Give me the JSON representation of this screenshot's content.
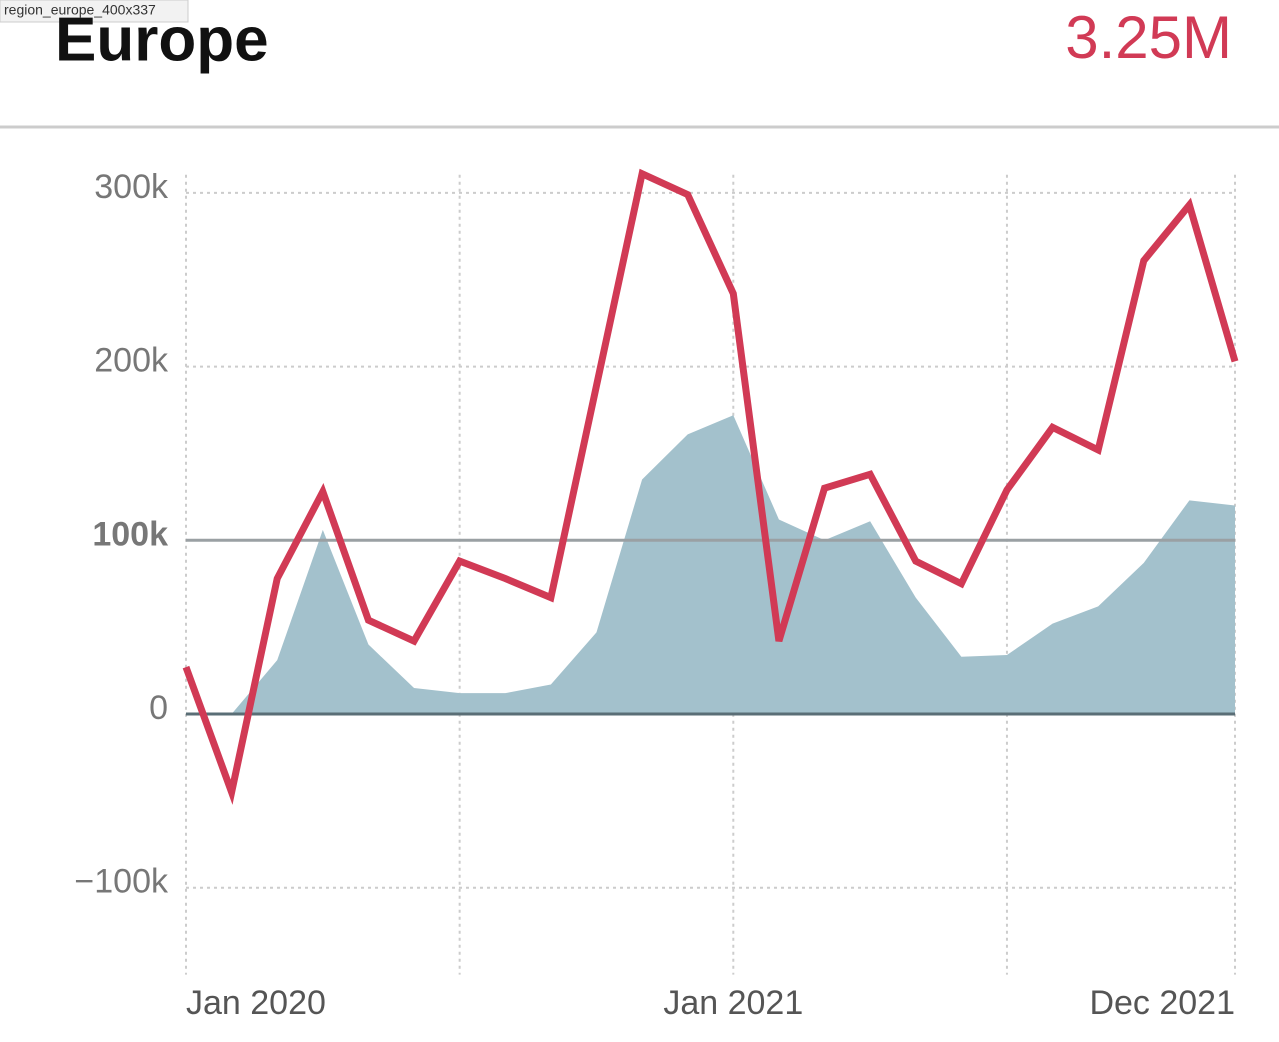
{
  "window_label": "region_europe_400x337",
  "chart_data": {
    "type": "line",
    "title": "Europe",
    "headline_value": "3.25M",
    "categories": [
      "Jan 2020",
      null,
      null,
      null,
      null,
      null,
      null,
      null,
      null,
      null,
      null,
      null,
      "Jan 2021",
      null,
      null,
      null,
      null,
      null,
      null,
      null,
      null,
      null,
      null,
      "Dec 2021"
    ],
    "series": [
      {
        "kind": "area",
        "color": "#a3c1cc",
        "values": [
          null,
          0,
          31000,
          106000,
          40000,
          15000,
          12000,
          12000,
          17000,
          47000,
          135000,
          161000,
          172000,
          112000,
          100000,
          111000,
          67000,
          33000,
          34000,
          52000,
          62000,
          87000,
          123000,
          120000
        ]
      },
      {
        "kind": "line",
        "color": "#d13a55",
        "values": [
          27000,
          -45000,
          78000,
          128000,
          54000,
          42000,
          88000,
          78000,
          67000,
          189000,
          311000,
          299000,
          242000,
          42000,
          130000,
          138000,
          88000,
          75000,
          129000,
          165000,
          152000,
          261000,
          293000,
          203000
        ]
      }
    ],
    "ylim": [
      -150000,
      315000
    ],
    "yticks": [
      {
        "value": -100000,
        "label": "−100k"
      },
      0,
      {
        "value": 100000,
        "label": "100k"
      },
      {
        "value": 200000,
        "label": "200k"
      },
      {
        "value": 300000,
        "label": "300k"
      }
    ],
    "reference_lines": [
      0,
      100000
    ],
    "grid": true
  }
}
